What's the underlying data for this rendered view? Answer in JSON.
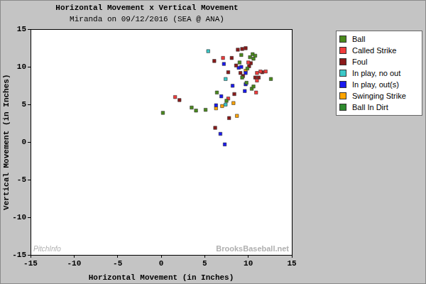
{
  "chart_data": {
    "type": "scatter",
    "title": "Horizontal Movement x Vertical Movement",
    "subtitle": "Miranda on 09/12/2016 (SEA @ ANA)",
    "x_label": "Horizontal Movement (in Inches)",
    "y_label": "Vertical Movement (in Inches)",
    "xlim": [
      -15,
      15
    ],
    "xticks": [
      -15,
      -10,
      -5,
      0,
      5,
      10,
      15
    ],
    "ylim": [
      -15,
      15
    ],
    "yticks": [
      -15,
      -10,
      -5,
      0,
      5,
      10,
      15
    ],
    "grid": false,
    "legend": "right",
    "marker": "square",
    "annotations": [
      "PitchInfo",
      "BrooksBaseball.net"
    ],
    "series": [
      {
        "name": "Ball",
        "color": "#4a8a1c",
        "values": [
          [
            0.2,
            3.9
          ],
          [
            3.5,
            4.6
          ],
          [
            4.0,
            4.2
          ],
          [
            5.1,
            4.3
          ],
          [
            6.4,
            6.6
          ],
          [
            7.5,
            5.5
          ],
          [
            9.2,
            11.6
          ],
          [
            9.0,
            10.6
          ],
          [
            9.9,
            9.8
          ],
          [
            10.5,
            11.7
          ],
          [
            10.2,
            11.3
          ],
          [
            10.6,
            11.1
          ],
          [
            9.3,
            8.6
          ],
          [
            9.8,
            7.9
          ],
          [
            10.4,
            7.1
          ],
          [
            10.6,
            7.4
          ],
          [
            12.6,
            8.4
          ],
          [
            10.8,
            11.5
          ]
        ]
      },
      {
        "name": "Called Strike",
        "color": "#f03c3c",
        "values": [
          [
            1.6,
            6.0
          ],
          [
            7.1,
            11.2
          ],
          [
            7.7,
            5.8
          ],
          [
            10.0,
            10.6
          ],
          [
            11.0,
            9.2
          ],
          [
            10.9,
            6.6
          ],
          [
            11.4,
            9.4
          ],
          [
            12.0,
            9.4
          ],
          [
            11.0,
            8.2
          ]
        ]
      },
      {
        "name": "Foul",
        "color": "#8b1a1a",
        "values": [
          [
            2.1,
            5.6
          ],
          [
            6.1,
            10.8
          ],
          [
            6.2,
            1.9
          ],
          [
            7.8,
            3.2
          ],
          [
            8.1,
            11.2
          ],
          [
            7.7,
            9.3
          ],
          [
            8.4,
            6.4
          ],
          [
            8.8,
            12.3
          ],
          [
            9.3,
            12.4
          ],
          [
            9.7,
            12.5
          ],
          [
            8.6,
            10.2
          ],
          [
            9.1,
            9.2
          ],
          [
            9.4,
            8.8
          ],
          [
            10.3,
            10.5
          ],
          [
            10.1,
            10.1
          ],
          [
            10.8,
            8.6
          ],
          [
            11.2,
            8.6
          ],
          [
            11.6,
            9.3
          ]
        ]
      },
      {
        "name": "In play, no out",
        "color": "#3cc8c8",
        "values": [
          [
            5.4,
            12.1
          ],
          [
            7.4,
            8.4
          ],
          [
            7.4,
            5.0
          ]
        ]
      },
      {
        "name": "In play, out(s)",
        "color": "#1a1aee",
        "values": [
          [
            6.3,
            4.9
          ],
          [
            6.8,
            1.1
          ],
          [
            7.3,
            -0.3
          ],
          [
            6.9,
            6.1
          ],
          [
            7.2,
            10.4
          ],
          [
            8.2,
            7.5
          ],
          [
            8.9,
            9.9
          ],
          [
            9.2,
            10.0
          ],
          [
            9.7,
            9.2
          ],
          [
            9.7,
            7.7
          ],
          [
            9.6,
            6.8
          ]
        ]
      },
      {
        "name": "Swinging Strike",
        "color": "#ffa500",
        "values": [
          [
            6.3,
            4.5
          ],
          [
            7.0,
            4.8
          ],
          [
            8.3,
            5.2
          ],
          [
            8.7,
            3.5
          ],
          [
            9.7,
            9.5
          ]
        ]
      },
      {
        "name": "Ball In Dirt",
        "color": "#2e8b2e",
        "values": []
      }
    ]
  }
}
